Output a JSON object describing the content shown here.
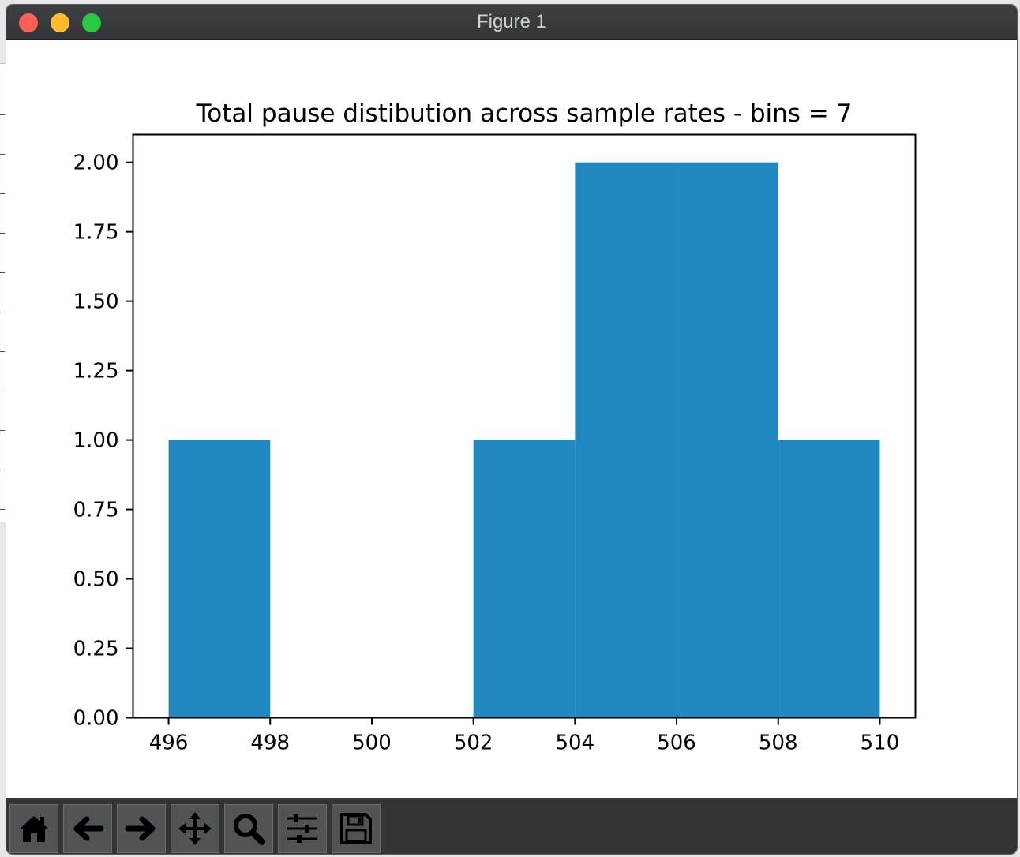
{
  "window": {
    "title": "Figure 1"
  },
  "toolbar": {
    "buttons": [
      {
        "name": "home-button",
        "icon": "home-icon"
      },
      {
        "name": "back-button",
        "icon": "arrow-left-icon"
      },
      {
        "name": "forward-button",
        "icon": "arrow-right-icon"
      },
      {
        "name": "pan-button",
        "icon": "move-icon"
      },
      {
        "name": "zoom-button",
        "icon": "magnifier-icon"
      },
      {
        "name": "configure-subplots-button",
        "icon": "sliders-icon"
      },
      {
        "name": "save-button",
        "icon": "floppy-disk-icon"
      }
    ]
  },
  "chart_data": {
    "type": "bar",
    "title": "Total pause distibution across sample rates - bins = 7",
    "xlabel": "",
    "ylabel": "",
    "bins": [
      {
        "start": 496,
        "end": 498,
        "count": 1
      },
      {
        "start": 498,
        "end": 500,
        "count": 0
      },
      {
        "start": 500,
        "end": 502,
        "count": 0
      },
      {
        "start": 502,
        "end": 504,
        "count": 1
      },
      {
        "start": 504,
        "end": 506,
        "count": 2
      },
      {
        "start": 506,
        "end": 508,
        "count": 2
      },
      {
        "start": 508,
        "end": 510,
        "count": 1
      }
    ],
    "xticks": [
      "496",
      "498",
      "500",
      "502",
      "504",
      "506",
      "508",
      "510"
    ],
    "yticks": [
      "0.00",
      "0.25",
      "0.50",
      "0.75",
      "1.00",
      "1.25",
      "1.50",
      "1.75",
      "2.00"
    ],
    "xlim": [
      495.3,
      510.7
    ],
    "ylim": [
      0,
      2.1
    ],
    "grid": false,
    "bar_color": "#2189bf"
  }
}
